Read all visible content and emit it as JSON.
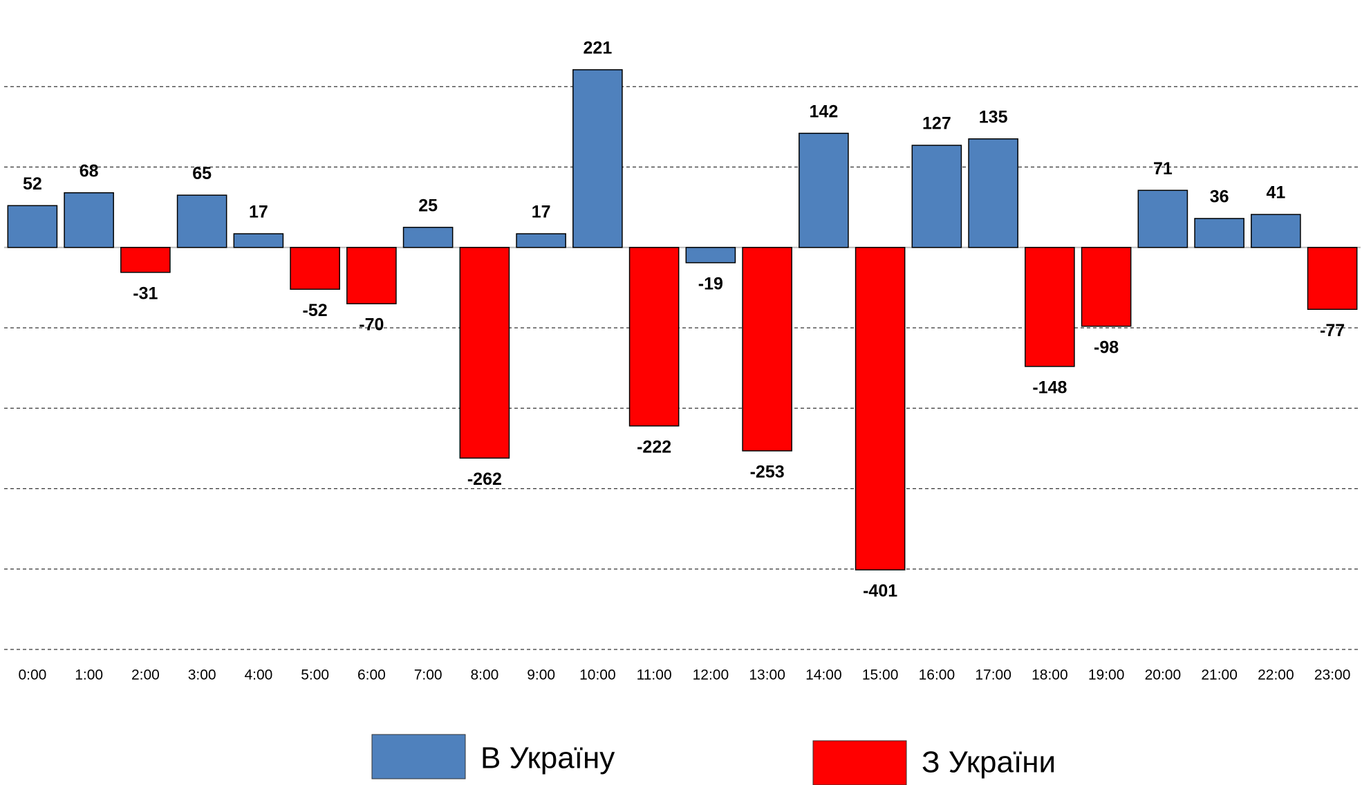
{
  "chart_data": {
    "type": "bar",
    "categories": [
      "0:00",
      "1:00",
      "2:00",
      "3:00",
      "4:00",
      "5:00",
      "6:00",
      "7:00",
      "8:00",
      "9:00",
      "10:00",
      "11:00",
      "12:00",
      "13:00",
      "14:00",
      "15:00",
      "16:00",
      "17:00",
      "18:00",
      "19:00",
      "20:00",
      "21:00",
      "22:00",
      "23:00"
    ],
    "series": [
      {
        "name": "В Україну",
        "color": "#4f81bd",
        "values": [
          52,
          68,
          null,
          65,
          17,
          null,
          null,
          25,
          null,
          17,
          221,
          null,
          -19,
          null,
          142,
          null,
          127,
          135,
          null,
          null,
          71,
          36,
          41,
          null
        ]
      },
      {
        "name": "З України",
        "color": "#ff0000",
        "values": [
          null,
          null,
          -31,
          null,
          null,
          -52,
          -70,
          null,
          -262,
          null,
          null,
          -222,
          null,
          -253,
          null,
          -401,
          null,
          null,
          -148,
          -98,
          null,
          null,
          null,
          -77
        ]
      }
    ],
    "ylim": [
      -500,
      300
    ],
    "yticks": [
      -500,
      -400,
      -300,
      -200,
      -100,
      0,
      100,
      200
    ],
    "grid": true,
    "legend": "bottom"
  }
}
